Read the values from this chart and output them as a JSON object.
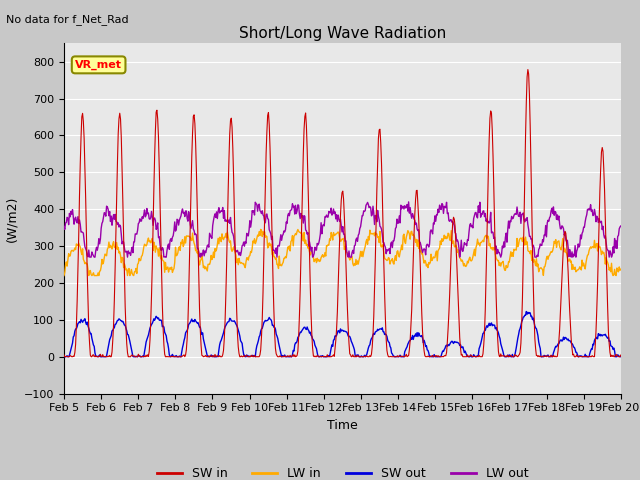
{
  "title": "Short/Long Wave Radiation",
  "xlabel": "Time",
  "ylabel": "(W/m2)",
  "annotation": "No data for f_Net_Rad",
  "legend_label": "VR_met",
  "ylim": [
    -100,
    850
  ],
  "xlim": [
    0,
    15
  ],
  "xtick_labels": [
    "Feb 5",
    "Feb 6",
    "Feb 7",
    "Feb 8",
    "Feb 9",
    "Feb 10",
    "Feb 11",
    "Feb 12",
    "Feb 13",
    "Feb 14",
    "Feb 15",
    "Feb 16",
    "Feb 17",
    "Feb 18",
    "Feb 19",
    "Feb 20"
  ],
  "colors": {
    "SW_in": "#cc0000",
    "LW_in": "#ffaa00",
    "SW_out": "#0000dd",
    "LW_out": "#9900aa"
  },
  "fig_bg": "#c8c8c8",
  "plot_bg": "#e8e8e8",
  "SW_in_peaks": [
    660,
    660,
    670,
    660,
    650,
    660,
    660,
    450,
    620,
    450,
    380,
    670,
    780,
    340,
    570
  ],
  "SW_out_peaks": [
    100,
    100,
    105,
    100,
    100,
    100,
    75,
    75,
    75,
    60,
    40,
    90,
    120,
    50,
    60
  ]
}
